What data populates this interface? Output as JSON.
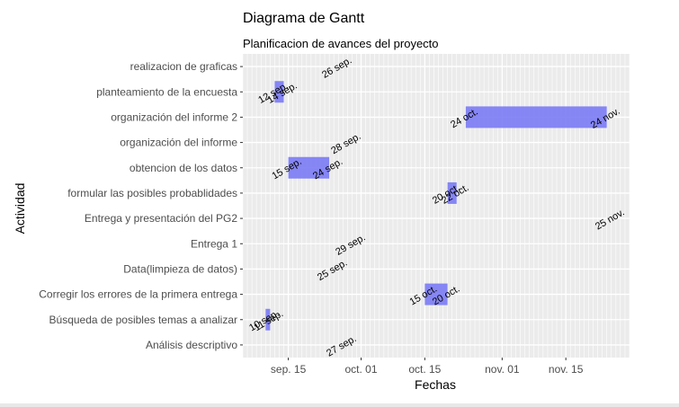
{
  "chart_data": {
    "type": "bar",
    "orientation": "horizontal",
    "title": "Diagrama de Gantt",
    "subtitle": "Planificacion de avances del proyecto",
    "xlabel": "Fechas",
    "ylabel": "Actividad",
    "x_ticks": [
      "sep. 15",
      "oct. 01",
      "oct. 15",
      "nov. 01",
      "nov. 15"
    ],
    "x_tick_dates": [
      "2023-09-15",
      "2023-10-01",
      "2023-10-15",
      "2023-11-01",
      "2023-11-15"
    ],
    "xlim": [
      "2023-09-05",
      "2023-11-29"
    ],
    "bar_color": "#7a7af5",
    "grid": true,
    "categories": [
      "realizacion de graficas",
      "planteamiento de la encuesta",
      "organización del informe 2",
      "organización del informe",
      "obtencion de los datos",
      "formular las posibles probablidades",
      "Entrega y presentación del PG2",
      "Entrega 1",
      "Data(limpieza de datos)",
      "Corregir los errores de la primera entrega",
      "Búsqueda de posibles temas a analizar",
      "Análisis descriptivo"
    ],
    "tasks": [
      {
        "task": "realizacion de graficas",
        "start": "2023-09-26",
        "end": "2023-09-26",
        "start_label": "26 sep.",
        "end_label": ""
      },
      {
        "task": "planteamiento de la encuesta",
        "start": "2023-09-12",
        "end": "2023-09-14",
        "start_label": "12 sep.",
        "end_label": "14 sep."
      },
      {
        "task": "organización del informe 2",
        "start": "2023-10-24",
        "end": "2023-11-24",
        "start_label": "24 oct.",
        "end_label": "24 nov."
      },
      {
        "task": "organización del informe",
        "start": "2023-09-28",
        "end": "2023-09-28",
        "start_label": "28 sep.",
        "end_label": ""
      },
      {
        "task": "obtencion de los datos",
        "start": "2023-09-15",
        "end": "2023-09-24",
        "start_label": "15 sep.",
        "end_label": "24 sep."
      },
      {
        "task": "formular las posibles probablidades",
        "start": "2023-10-20",
        "end": "2023-10-22",
        "start_label": "20 oct.",
        "end_label": "22 oct."
      },
      {
        "task": "Entrega y presentación del PG2",
        "start": "2023-11-25",
        "end": "2023-11-25",
        "start_label": "25 nov.",
        "end_label": ""
      },
      {
        "task": "Entrega 1",
        "start": "2023-09-29",
        "end": "2023-09-29",
        "start_label": "29 sep.",
        "end_label": ""
      },
      {
        "task": "Data(limpieza de datos)",
        "start": "2023-09-25",
        "end": "2023-09-25",
        "start_label": "25 sep.",
        "end_label": ""
      },
      {
        "task": "Corregir los errores de la primera entrega",
        "start": "2023-10-15",
        "end": "2023-10-20",
        "start_label": "15 oct.",
        "end_label": "20 oct."
      },
      {
        "task": "Búsqueda de posibles temas a analizar",
        "start": "2023-09-10",
        "end": "2023-09-11",
        "start_label": "10 sep.",
        "end_label": "11 sep."
      },
      {
        "task": "Análisis descriptivo",
        "start": "2023-09-27",
        "end": "2023-09-27",
        "start_label": "27 sep.",
        "end_label": ""
      }
    ]
  }
}
